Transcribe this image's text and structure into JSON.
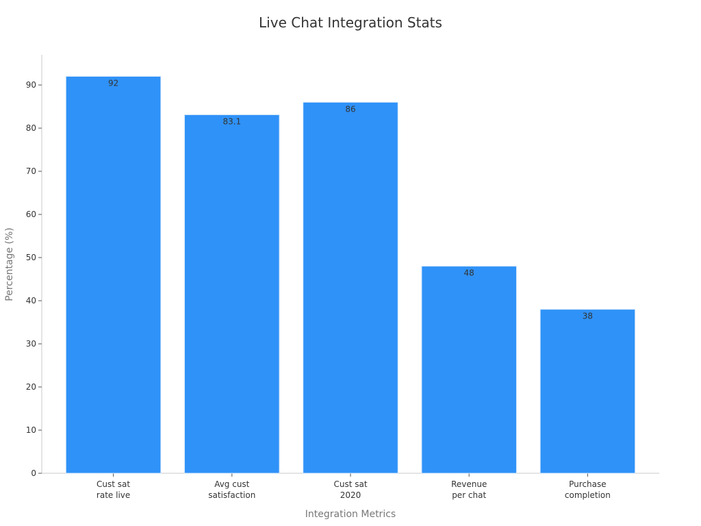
{
  "chart_data": {
    "type": "bar",
    "title": "Live Chat Integration Stats",
    "xlabel": "Integration Metrics",
    "ylabel": "Percentage (%)",
    "categories": [
      [
        "Cust sat",
        "rate live"
      ],
      [
        "Avg cust",
        "satisfaction"
      ],
      [
        "Cust sat",
        "2020"
      ],
      [
        "Revenue",
        "per chat"
      ],
      [
        "Purchase",
        "completion"
      ]
    ],
    "values": [
      92,
      83.1,
      86,
      48,
      38
    ],
    "ylim": [
      0,
      97
    ],
    "yticks": [
      0,
      10,
      20,
      30,
      40,
      50,
      60,
      70,
      80,
      90
    ],
    "grid": false,
    "legend": "none",
    "colors": {
      "bar": "#2f92f8",
      "bar_edge": "#d6e8fb",
      "axis": "#c8c8c8",
      "title": "#333333",
      "axis_label": "#777777",
      "tick_label": "#333333",
      "value_label": "#333333"
    }
  }
}
